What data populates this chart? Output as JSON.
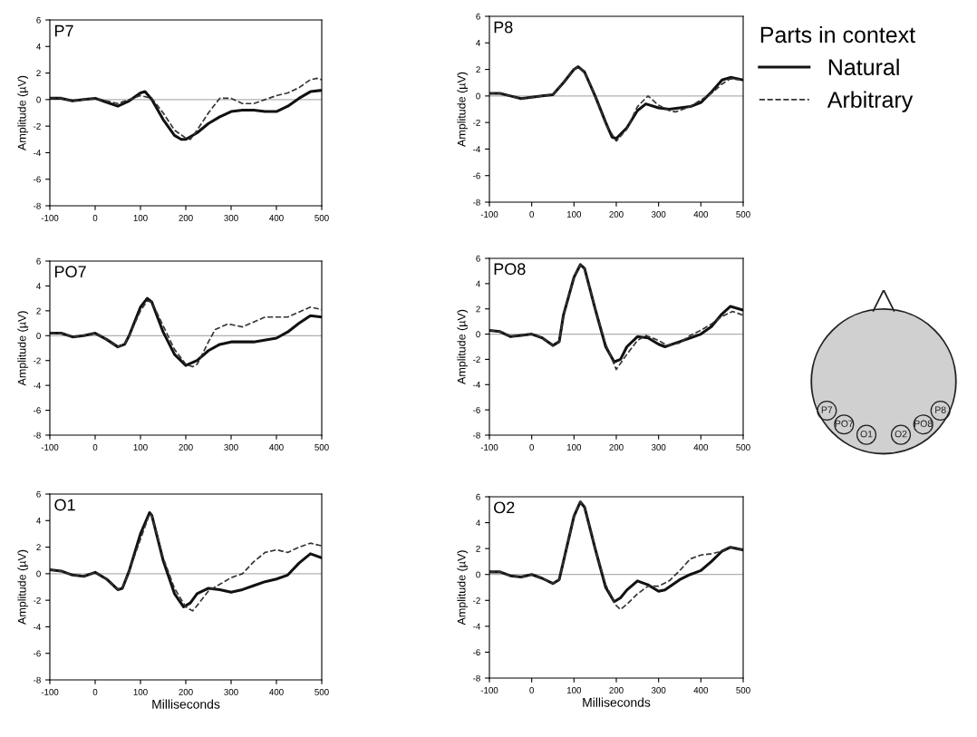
{
  "chart_data": [
    {
      "type": "line",
      "title": "P7",
      "ylabel": "Amplitude (µV)",
      "xlim": [
        -100,
        500
      ],
      "ylim": [
        -8,
        6
      ],
      "xticks": [
        -100,
        0,
        100,
        200,
        300,
        400,
        500
      ],
      "yticks": [
        -8,
        -6,
        -4,
        -2,
        0,
        2,
        4,
        6
      ],
      "grid": false,
      "legend": false,
      "ref_lines": [
        {
          "axis": "y",
          "value": 0,
          "color": "#b0b0b0"
        }
      ],
      "series": [
        {
          "color": "#111111",
          "line_style": "solid",
          "x": [
            -100,
            -75,
            -50,
            -25,
            0,
            25,
            50,
            75,
            100,
            110,
            125,
            150,
            175,
            190,
            200,
            225,
            250,
            275,
            300,
            325,
            350,
            375,
            400,
            425,
            450,
            475,
            500
          ],
          "values": [
            0.1,
            0.1,
            -0.1,
            0,
            0.1,
            -0.2,
            -0.5,
            -0.1,
            0.5,
            0.6,
            0,
            -1.5,
            -2.7,
            -3.0,
            -3.0,
            -2.5,
            -1.8,
            -1.3,
            -0.9,
            -0.8,
            -0.8,
            -0.9,
            -0.9,
            -0.5,
            0.1,
            0.6,
            0.7
          ]
        },
        {
          "color": "#333333",
          "line_style": "dashed",
          "x": [
            -100,
            -75,
            -50,
            -25,
            0,
            25,
            50,
            75,
            100,
            125,
            150,
            175,
            200,
            210,
            225,
            250,
            275,
            300,
            325,
            350,
            375,
            400,
            425,
            450,
            475,
            490,
            500
          ],
          "values": [
            0.1,
            0.1,
            -0.1,
            0,
            0.1,
            -0.1,
            -0.3,
            0,
            0.3,
            0.1,
            -1.0,
            -2.3,
            -2.9,
            -3.0,
            -2.3,
            -1.0,
            0.1,
            0.1,
            -0.3,
            -0.3,
            0,
            0.3,
            0.5,
            0.9,
            1.5,
            1.6,
            1.5
          ]
        }
      ]
    },
    {
      "type": "line",
      "title": "P8",
      "ylabel": "Amplitude (µV)",
      "legend_title": "Parts in context",
      "xlim": [
        -100,
        500
      ],
      "ylim": [
        -8,
        6
      ],
      "xticks": [
        -100,
        0,
        100,
        200,
        300,
        400,
        500
      ],
      "yticks": [
        -8,
        -6,
        -4,
        -2,
        0,
        2,
        4,
        6
      ],
      "grid": false,
      "legend": "right",
      "ref_lines": [
        {
          "axis": "y",
          "value": 0,
          "color": "#b0b0b0"
        }
      ],
      "series": [
        {
          "name": "Natural",
          "color": "#111111",
          "line_style": "solid",
          "x": [
            -100,
            -75,
            -50,
            -25,
            0,
            25,
            50,
            75,
            100,
            110,
            125,
            150,
            175,
            190,
            200,
            225,
            250,
            270,
            300,
            325,
            350,
            375,
            400,
            425,
            450,
            470,
            500
          ],
          "values": [
            0.2,
            0.2,
            0,
            -0.2,
            -0.1,
            0,
            0.1,
            1.0,
            2.0,
            2.2,
            1.8,
            0,
            -2.0,
            -3.1,
            -3.2,
            -2.4,
            -1.1,
            -0.6,
            -0.9,
            -1.0,
            -0.9,
            -0.8,
            -0.5,
            0.3,
            1.2,
            1.4,
            1.2
          ]
        },
        {
          "name": "Arbitrary",
          "color": "#333333",
          "line_style": "dashed",
          "x": [
            -100,
            -75,
            -50,
            -25,
            0,
            25,
            50,
            75,
            100,
            110,
            125,
            150,
            175,
            200,
            225,
            250,
            275,
            300,
            325,
            340,
            375,
            400,
            425,
            450,
            470,
            500
          ],
          "values": [
            0.2,
            0.2,
            0,
            -0.2,
            -0.1,
            0,
            0.1,
            1.0,
            2.0,
            2.2,
            1.8,
            0,
            -2.1,
            -3.4,
            -2.5,
            -0.8,
            0,
            -0.7,
            -1.1,
            -1.2,
            -0.8,
            -0.3,
            0.2,
            0.9,
            1.3,
            1.2
          ]
        }
      ]
    },
    {
      "type": "line",
      "title": "PO7",
      "ylabel": "Amplitude (µV)",
      "xlim": [
        -100,
        500
      ],
      "ylim": [
        -8,
        6
      ],
      "xticks": [
        -100,
        0,
        100,
        200,
        300,
        400,
        500
      ],
      "yticks": [
        -8,
        -6,
        -4,
        -2,
        0,
        2,
        4,
        6
      ],
      "grid": false,
      "legend": false,
      "ref_lines": [
        {
          "axis": "y",
          "value": 0,
          "color": "#b0b0b0"
        }
      ],
      "series": [
        {
          "color": "#111111",
          "line_style": "solid",
          "x": [
            -100,
            -75,
            -50,
            -25,
            0,
            25,
            50,
            65,
            75,
            100,
            115,
            125,
            150,
            175,
            200,
            225,
            250,
            275,
            300,
            350,
            400,
            425,
            450,
            475,
            500
          ],
          "values": [
            0.2,
            0.2,
            -0.1,
            0,
            0.2,
            -0.3,
            -0.9,
            -0.7,
            0,
            2.3,
            3.0,
            2.7,
            0.3,
            -1.5,
            -2.4,
            -2.0,
            -1.2,
            -0.7,
            -0.5,
            -0.5,
            -0.2,
            0.3,
            1.0,
            1.6,
            1.5
          ]
        },
        {
          "color": "#333333",
          "line_style": "dashed",
          "x": [
            -100,
            -75,
            -50,
            -25,
            0,
            25,
            50,
            65,
            75,
            100,
            115,
            125,
            150,
            175,
            200,
            215,
            225,
            250,
            265,
            290,
            300,
            325,
            350,
            375,
            400,
            425,
            450,
            475,
            500
          ],
          "values": [
            0.2,
            0.2,
            -0.1,
            0,
            0.2,
            -0.3,
            -0.9,
            -0.7,
            0,
            2.0,
            2.8,
            2.7,
            0.8,
            -1.1,
            -2.3,
            -2.5,
            -2.3,
            -0.5,
            0.5,
            0.9,
            0.9,
            0.7,
            1.1,
            1.5,
            1.5,
            1.5,
            1.9,
            2.3,
            2.1
          ]
        }
      ]
    },
    {
      "type": "line",
      "title": "PO8",
      "ylabel": "Amplitude (µV)",
      "xlim": [
        -100,
        500
      ],
      "ylim": [
        -8,
        6
      ],
      "xticks": [
        -100,
        0,
        100,
        200,
        300,
        400,
        500
      ],
      "yticks": [
        -8,
        -6,
        -4,
        -2,
        0,
        2,
        4,
        6
      ],
      "grid": false,
      "legend": false,
      "ref_lines": [
        {
          "axis": "y",
          "value": 0,
          "color": "#b0b0b0"
        }
      ],
      "series": [
        {
          "color": "#111111",
          "line_style": "solid",
          "x": [
            -100,
            -75,
            -50,
            -25,
            0,
            25,
            50,
            65,
            75,
            100,
            115,
            125,
            150,
            175,
            195,
            210,
            225,
            250,
            275,
            300,
            315,
            350,
            375,
            400,
            425,
            450,
            470,
            500
          ],
          "values": [
            0.3,
            0.2,
            -0.2,
            -0.1,
            0,
            -0.3,
            -0.9,
            -0.6,
            1.5,
            4.5,
            5.5,
            5.2,
            2.0,
            -1.0,
            -2.2,
            -2.0,
            -1.0,
            -0.2,
            -0.3,
            -0.8,
            -1.0,
            -0.6,
            -0.3,
            0,
            0.6,
            1.6,
            2.2,
            1.9
          ]
        },
        {
          "color": "#333333",
          "line_style": "dashed",
          "x": [
            -100,
            -75,
            -50,
            -25,
            0,
            25,
            50,
            65,
            75,
            100,
            115,
            125,
            150,
            175,
            200,
            225,
            250,
            270,
            300,
            320,
            350,
            375,
            400,
            425,
            450,
            475,
            500
          ],
          "values": [
            0.3,
            0.2,
            -0.2,
            -0.1,
            0,
            -0.3,
            -0.9,
            -0.6,
            1.5,
            4.5,
            5.5,
            5.2,
            2.0,
            -0.8,
            -2.8,
            -1.6,
            -0.5,
            -0.1,
            -0.5,
            -0.9,
            -0.7,
            -0.1,
            0.3,
            0.8,
            1.4,
            1.8,
            1.5
          ]
        }
      ]
    },
    {
      "type": "line",
      "title": "O1",
      "xlabel": "Milliseconds",
      "ylabel": "Amplitude (µV)",
      "xlim": [
        -100,
        500
      ],
      "ylim": [
        -8,
        6
      ],
      "xticks": [
        -100,
        0,
        100,
        200,
        300,
        400,
        500
      ],
      "yticks": [
        -8,
        -6,
        -4,
        -2,
        0,
        2,
        4,
        6
      ],
      "grid": false,
      "legend": false,
      "ref_lines": [
        {
          "axis": "y",
          "value": 0,
          "color": "#b0b0b0"
        }
      ],
      "series": [
        {
          "color": "#111111",
          "line_style": "solid",
          "x": [
            -100,
            -75,
            -50,
            -25,
            0,
            25,
            50,
            60,
            75,
            100,
            120,
            125,
            150,
            175,
            195,
            210,
            225,
            250,
            275,
            300,
            325,
            350,
            375,
            400,
            425,
            450,
            475,
            500
          ],
          "values": [
            0.3,
            0.2,
            -0.1,
            -0.2,
            0.1,
            -0.4,
            -1.2,
            -1.1,
            0.2,
            3.0,
            4.6,
            4.4,
            1.0,
            -1.5,
            -2.5,
            -2.2,
            -1.5,
            -1.1,
            -1.2,
            -1.4,
            -1.2,
            -0.9,
            -0.6,
            -0.4,
            -0.1,
            0.8,
            1.5,
            1.2
          ]
        },
        {
          "color": "#333333",
          "line_style": "dashed",
          "x": [
            -100,
            -75,
            -50,
            -25,
            0,
            25,
            50,
            60,
            75,
            100,
            120,
            125,
            150,
            175,
            200,
            215,
            225,
            250,
            275,
            300,
            325,
            350,
            375,
            400,
            425,
            450,
            475,
            500
          ],
          "values": [
            0.3,
            0.2,
            -0.1,
            -0.2,
            0.1,
            -0.4,
            -1.2,
            -1.1,
            0.2,
            2.6,
            4.5,
            4.4,
            1.2,
            -1.1,
            -2.5,
            -2.8,
            -2.4,
            -1.3,
            -0.8,
            -0.3,
            0,
            0.9,
            1.6,
            1.8,
            1.6,
            2.0,
            2.3,
            2.1
          ]
        }
      ]
    },
    {
      "type": "line",
      "title": "O2",
      "xlabel": "Milliseconds",
      "ylabel": "Amplitude (µV)",
      "xlim": [
        -100,
        500
      ],
      "ylim": [
        -8,
        6
      ],
      "xticks": [
        -100,
        0,
        100,
        200,
        300,
        400,
        500
      ],
      "yticks": [
        -8,
        -6,
        -4,
        -2,
        0,
        2,
        4,
        6
      ],
      "grid": false,
      "legend": false,
      "ref_lines": [
        {
          "axis": "y",
          "value": 0,
          "color": "#b0b0b0"
        }
      ],
      "series": [
        {
          "color": "#111111",
          "line_style": "solid",
          "x": [
            -100,
            -75,
            -50,
            -25,
            0,
            25,
            50,
            65,
            75,
            100,
            115,
            125,
            150,
            175,
            195,
            210,
            225,
            250,
            275,
            300,
            315,
            350,
            375,
            400,
            425,
            450,
            470,
            500
          ],
          "values": [
            0.2,
            0.2,
            -0.1,
            -0.2,
            0,
            -0.3,
            -0.7,
            -0.4,
            1.0,
            4.5,
            5.6,
            5.2,
            2.0,
            -1.0,
            -2.1,
            -1.8,
            -1.2,
            -0.5,
            -0.8,
            -1.3,
            -1.2,
            -0.4,
            0,
            0.3,
            1.0,
            1.8,
            2.1,
            1.9
          ]
        },
        {
          "color": "#333333",
          "line_style": "dashed",
          "x": [
            -100,
            -75,
            -50,
            -25,
            0,
            25,
            50,
            65,
            75,
            100,
            115,
            125,
            150,
            175,
            200,
            210,
            225,
            250,
            275,
            300,
            325,
            350,
            375,
            400,
            425,
            450,
            470,
            500
          ],
          "values": [
            0.2,
            0.2,
            -0.1,
            -0.2,
            0,
            -0.3,
            -0.7,
            -0.4,
            1.0,
            4.5,
            5.6,
            5.2,
            2.0,
            -0.8,
            -2.4,
            -2.7,
            -2.3,
            -1.5,
            -0.9,
            -0.9,
            -0.5,
            0.3,
            1.2,
            1.5,
            1.6,
            1.8,
            2.1,
            1.9
          ]
        }
      ]
    },
    {
      "type": "other",
      "annotations": [
        "P7",
        "PO7",
        "O1",
        "O2",
        "PO8",
        "P8"
      ]
    }
  ]
}
